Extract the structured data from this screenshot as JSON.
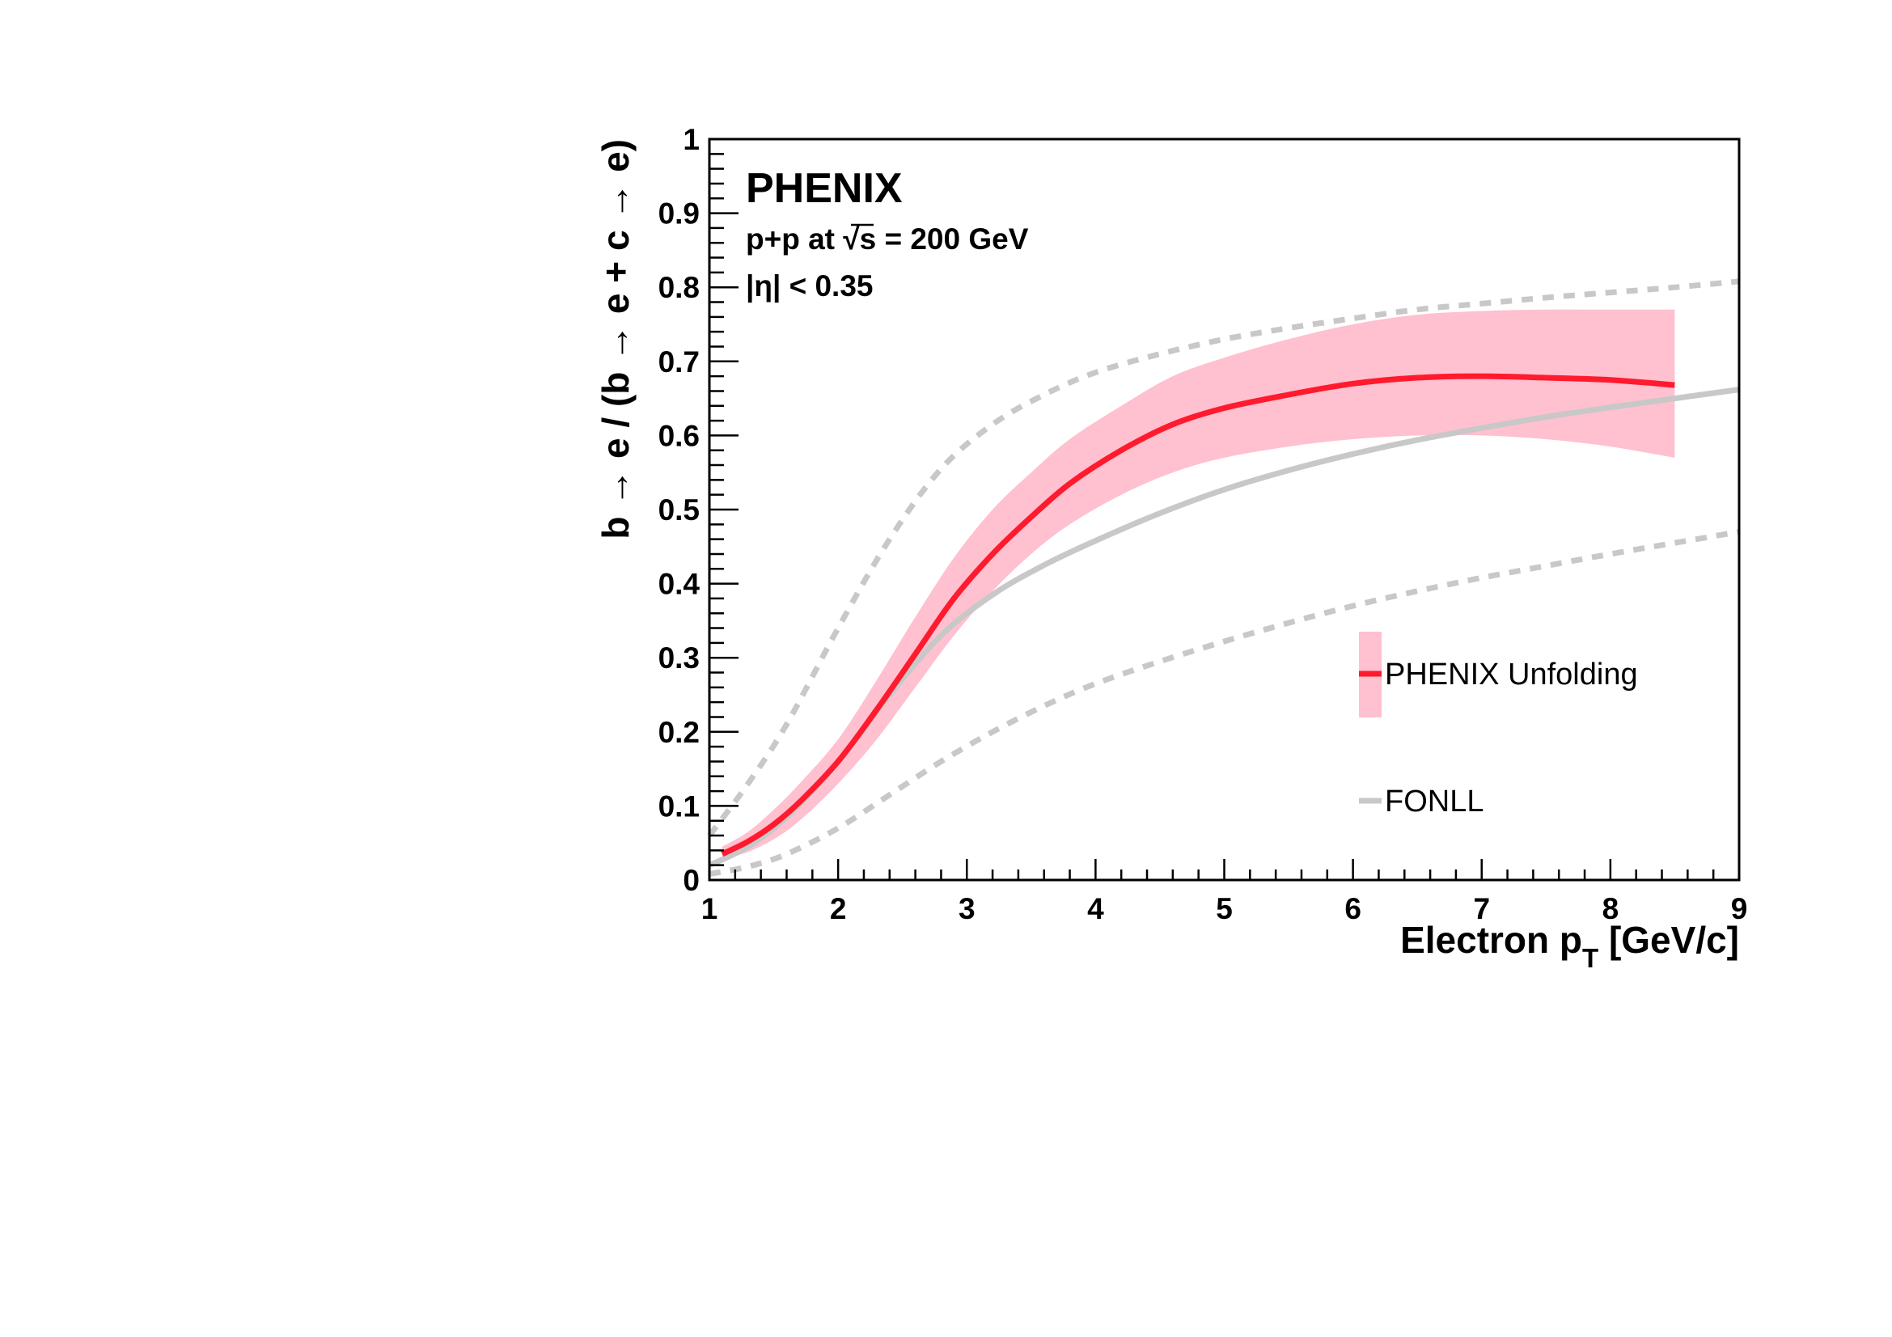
{
  "chart_data": {
    "type": "line",
    "xlabel": "Electron p",
    "xlabel_sub": "T",
    "xlabel_units": "[GeV/c]",
    "ylabel": "b → e / (b → e + c → e)",
    "xlim": [
      1,
      9
    ],
    "ylim": [
      0,
      1
    ],
    "x_ticks": [
      "1",
      "2",
      "3",
      "4",
      "5",
      "6",
      "7",
      "8",
      "9"
    ],
    "y_ticks": [
      "0",
      "0.1",
      "0.2",
      "0.3",
      "0.4",
      "0.5",
      "0.6",
      "0.7",
      "0.8",
      "0.9",
      "1"
    ],
    "grid": false,
    "legend_position": "bottom-right",
    "annotations": {
      "experiment": "PHENIX",
      "system_prefix": "p+p at ",
      "sqrt_s": "√s",
      "system_suffix": " = 200 GeV",
      "eta_cut": "|η| < 0.35"
    },
    "series": [
      {
        "name": "PHENIX Unfolding",
        "color": "#ff1a2e",
        "band_color": "#ffc0d0",
        "x": [
          1.1,
          1.3,
          1.5,
          1.7,
          2.0,
          2.3,
          2.6,
          2.9,
          3.2,
          3.5,
          3.8,
          4.2,
          4.6,
          5.0,
          5.5,
          6.0,
          6.5,
          7.0,
          7.5,
          8.0,
          8.5
        ],
        "y": [
          0.035,
          0.052,
          0.075,
          0.105,
          0.16,
          0.23,
          0.305,
          0.38,
          0.44,
          0.49,
          0.535,
          0.58,
          0.615,
          0.637,
          0.655,
          0.67,
          0.678,
          0.68,
          0.678,
          0.675,
          0.668
        ],
        "y_low": [
          0.028,
          0.038,
          0.055,
          0.08,
          0.13,
          0.19,
          0.26,
          0.33,
          0.39,
          0.44,
          0.48,
          0.52,
          0.55,
          0.57,
          0.585,
          0.595,
          0.6,
          0.6,
          0.595,
          0.585,
          0.57
        ],
        "y_high": [
          0.045,
          0.065,
          0.095,
          0.13,
          0.19,
          0.27,
          0.355,
          0.435,
          0.5,
          0.55,
          0.595,
          0.64,
          0.68,
          0.705,
          0.73,
          0.75,
          0.763,
          0.768,
          0.77,
          0.77,
          0.77
        ]
      },
      {
        "name": "FONLL",
        "color": "#c8c8c8",
        "x": [
          1.0,
          1.3,
          1.6,
          2.0,
          2.4,
          2.8,
          3.2,
          3.6,
          4.0,
          4.5,
          5.0,
          5.5,
          6.0,
          6.5,
          7.0,
          7.5,
          8.0,
          8.5,
          9.0
        ],
        "y": [
          0.02,
          0.045,
          0.085,
          0.16,
          0.25,
          0.33,
          0.385,
          0.425,
          0.458,
          0.495,
          0.527,
          0.553,
          0.575,
          0.594,
          0.61,
          0.625,
          0.638,
          0.65,
          0.662
        ]
      },
      {
        "name": "FONLL upper",
        "color": "#c8c8c8",
        "x": [
          1.0,
          1.3,
          1.6,
          2.0,
          2.4,
          2.8,
          3.2,
          3.6,
          4.0,
          4.5,
          5.0,
          5.5,
          6.0,
          6.5,
          7.0,
          7.5,
          8.0,
          8.5,
          9.0
        ],
        "y": [
          0.06,
          0.13,
          0.21,
          0.34,
          0.46,
          0.555,
          0.615,
          0.655,
          0.685,
          0.71,
          0.73,
          0.745,
          0.758,
          0.77,
          0.778,
          0.786,
          0.793,
          0.8,
          0.808
        ]
      },
      {
        "name": "FONLL lower",
        "color": "#c8c8c8",
        "x": [
          1.0,
          1.3,
          1.6,
          2.0,
          2.4,
          2.8,
          3.2,
          3.6,
          4.0,
          4.5,
          5.0,
          5.5,
          6.0,
          6.5,
          7.0,
          7.5,
          8.0,
          8.5,
          9.0
        ],
        "y": [
          0.008,
          0.018,
          0.035,
          0.07,
          0.115,
          0.16,
          0.2,
          0.235,
          0.265,
          0.295,
          0.322,
          0.347,
          0.37,
          0.39,
          0.408,
          0.424,
          0.44,
          0.455,
          0.47
        ]
      }
    ]
  }
}
